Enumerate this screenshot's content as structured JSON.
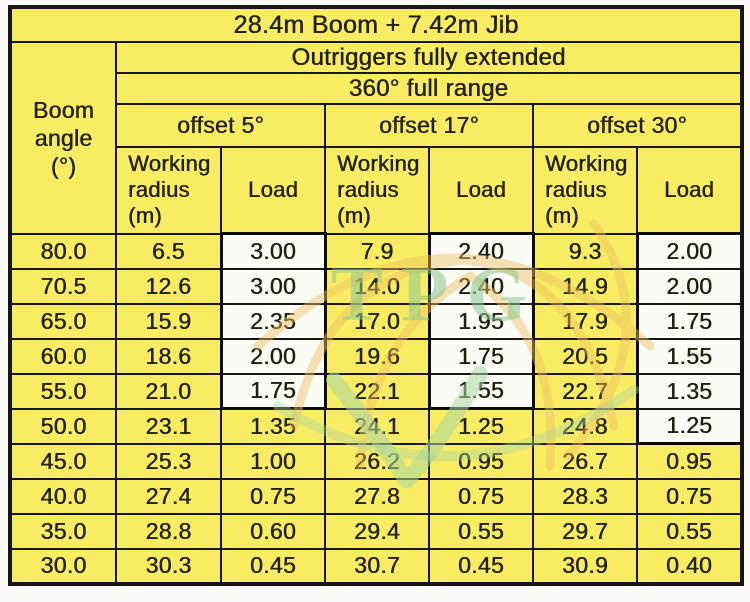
{
  "header": {
    "boom_angle": "Boom\nangle\n(°)",
    "outriggers": "Outriggers fully extended",
    "range": "360° full range",
    "offsets": [
      "offset 5°",
      "offset 17°",
      "offset 30°"
    ],
    "working_radius": "Working\nradius\n(m)",
    "load": "Load"
  },
  "watermark": {
    "text": "TPG"
  },
  "colors": {
    "table_bg": "#f8ec62",
    "highlight_bg": "#fcfcf6",
    "border": "#161616",
    "watermark_green": "#8cc88f",
    "watermark_orange": "#eec063"
  },
  "chart_data": {
    "type": "table",
    "title": "28.4m Boom + 7.42m Jib",
    "conditions": [
      "Outriggers fully extended",
      "360° full range"
    ],
    "row_header": "Boom angle (°)",
    "column_headers_per_group": [
      "Working radius (m)",
      "Load"
    ],
    "boom_angle_deg": [
      80.0,
      70.5,
      65.0,
      60.0,
      55.0,
      50.0,
      45.0,
      40.0,
      35.0,
      30.0
    ],
    "series": [
      {
        "name": "offset 5°",
        "working_radius_m": [
          6.5,
          12.6,
          15.9,
          18.6,
          21.0,
          23.1,
          25.3,
          27.4,
          28.8,
          30.3
        ],
        "load": [
          3.0,
          3.0,
          2.35,
          2.0,
          1.75,
          1.35,
          1.0,
          0.75,
          0.6,
          0.45
        ],
        "highlight_rows": [
          0,
          4
        ]
      },
      {
        "name": "offset 17°",
        "working_radius_m": [
          7.9,
          14.0,
          17.0,
          19.6,
          22.1,
          24.1,
          26.2,
          27.8,
          29.4,
          30.7
        ],
        "load": [
          2.4,
          2.4,
          1.95,
          1.75,
          1.55,
          1.25,
          0.95,
          0.75,
          0.55,
          0.45
        ],
        "highlight_rows": [
          0,
          4
        ]
      },
      {
        "name": "offset 30°",
        "working_radius_m": [
          9.3,
          14.9,
          17.9,
          20.5,
          22.7,
          24.8,
          26.7,
          28.3,
          29.7,
          30.9
        ],
        "load": [
          2.0,
          2.0,
          1.75,
          1.55,
          1.35,
          1.25,
          0.95,
          0.75,
          0.55,
          0.4
        ],
        "highlight_rows": [
          0,
          5
        ]
      }
    ]
  }
}
